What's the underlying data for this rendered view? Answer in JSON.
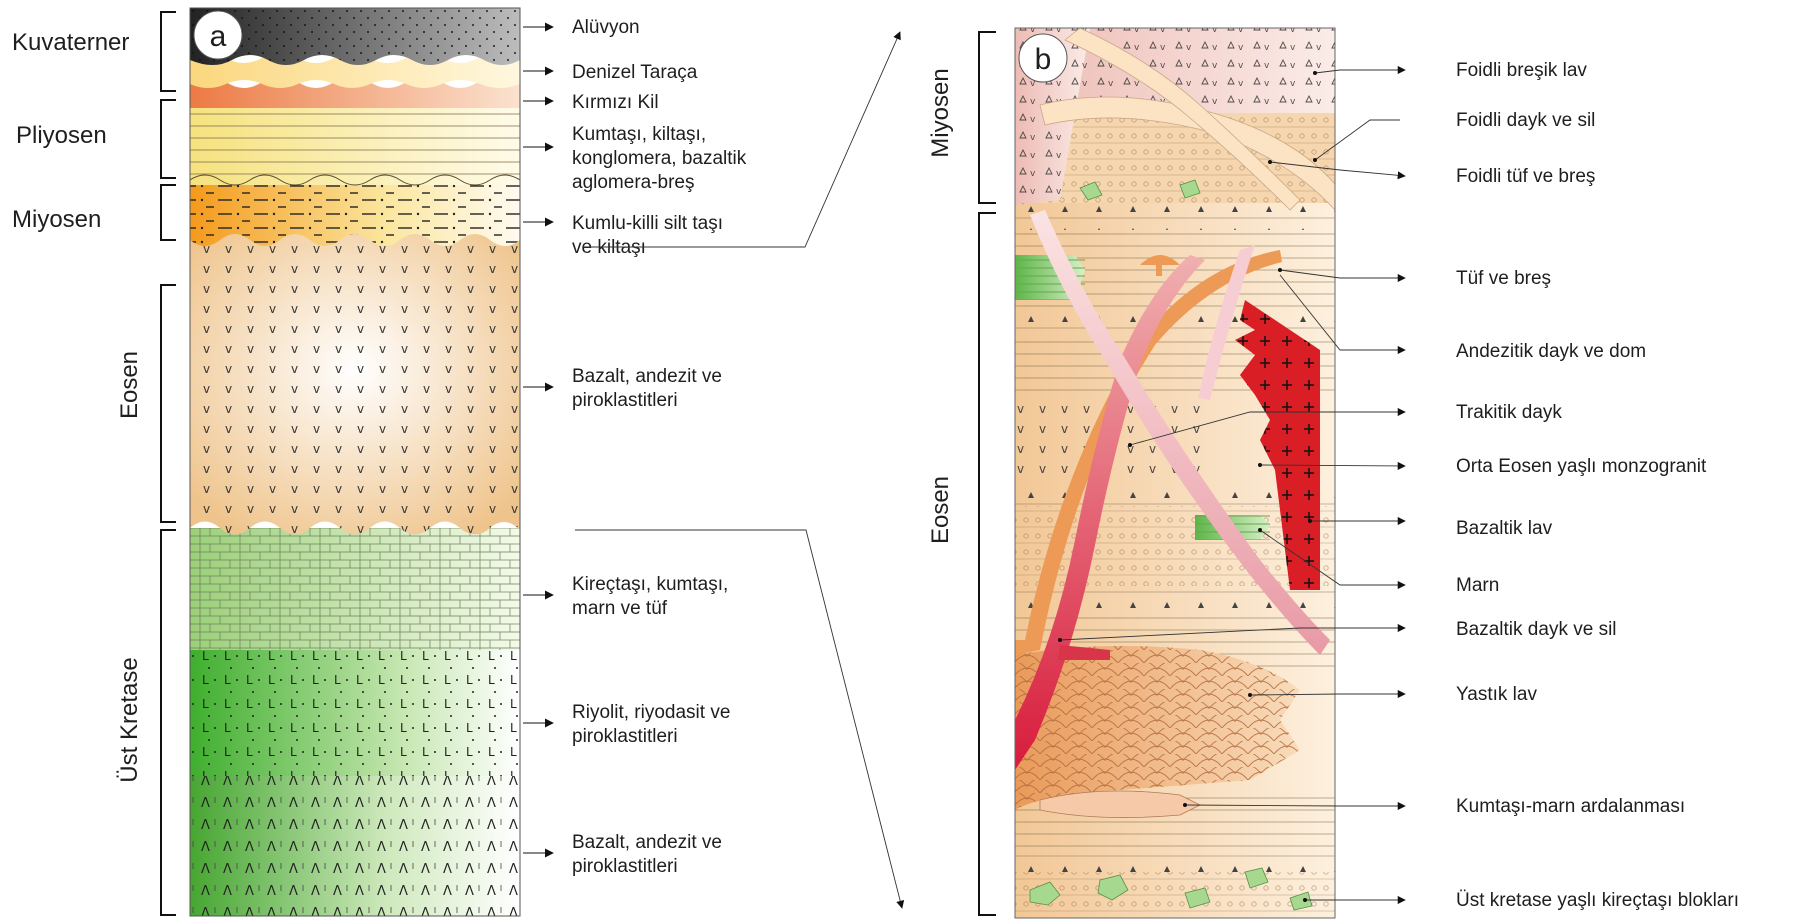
{
  "panel_a": {
    "badge": "a",
    "eras": [
      "Kuvaterner",
      "Pliyosen",
      "Miyosen",
      "Eosen",
      "Üst Kretase"
    ],
    "units": [
      [
        "Alüvyon"
      ],
      [
        "Denizel Taraça"
      ],
      [
        "Kırmızı Kil"
      ],
      [
        "Kumtaşı, kiltaşı,",
        "konglomera, bazaltik",
        "aglomera-breş"
      ],
      [
        "Kumlu-killi silt taşı",
        "ve kiltaşı"
      ],
      [
        "Bazalt, andezit ve",
        "piroklastitleri"
      ],
      [
        "Kireçtaşı, kumtaşı,",
        "marn ve tüf"
      ],
      [
        "Riyolit, riyodasit ve",
        "piroklastitleri"
      ],
      [
        "Bazalt, andezit ve",
        "piroklastitleri"
      ]
    ]
  },
  "panel_b": {
    "badge": "b",
    "eras": [
      "Miyosen",
      "Eosen"
    ],
    "units": [
      "Foidli breşik lav",
      "Foidli dayk ve sil",
      "Foidli tüf ve breş",
      "Tüf ve breş",
      "Andezitik dayk ve dom",
      "Trakitik dayk",
      "Orta Eosen yaşlı monzogranit",
      "Bazaltik lav",
      "Marn",
      "Bazaltik dayk ve sil",
      "Yastık lav",
      "Kumtaşı-marn ardalanması",
      "Üst kretase yaşlı kireçtaşı blokları"
    ]
  },
  "colors": {
    "alluvium": "#555555",
    "terrace": "#fbe6a8",
    "red_clay": "#ef8f5c",
    "pliocene": "#f8eaa0",
    "miocene": "#f6a62c",
    "eocene_a": "#f3d3a4",
    "limestone": "#b7d99b",
    "rhyolite": "#58b948",
    "basalt_green": "#4ea53a",
    "foid_breccia": "#f0c9c3",
    "tuff": "#f4d1a3",
    "monzogranite": "#d91f25",
    "andesite_dyke": "#ec9a55",
    "basalt_dyke": "#e4505a",
    "marl": "#7cc466",
    "ink": "#1e1e1e"
  }
}
